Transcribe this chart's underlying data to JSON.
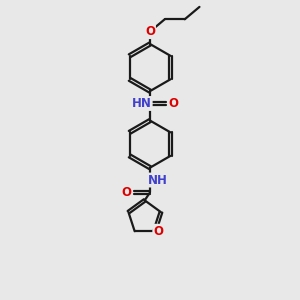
{
  "bg_color": "#e8e8e8",
  "bond_color": "#1a1a1a",
  "bond_width": 1.6,
  "dbo": 0.055,
  "colors": {
    "N": "#4040cc",
    "O": "#dd0000",
    "bg": "#e8e8e8"
  },
  "fs": 8.5
}
